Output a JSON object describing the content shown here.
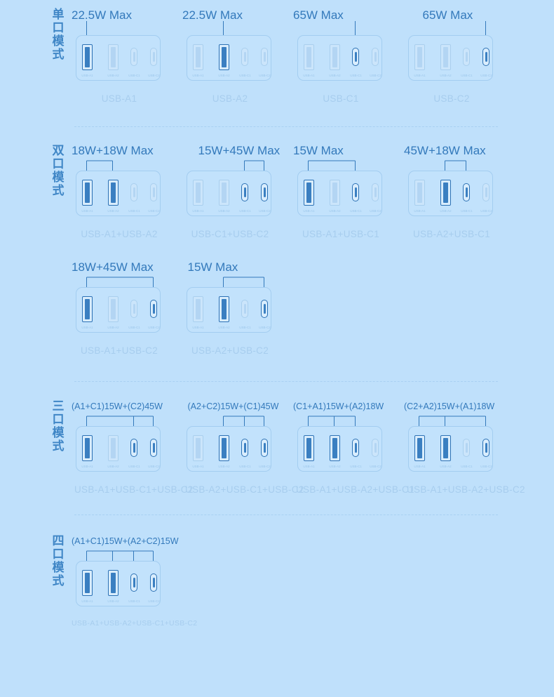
{
  "colors": {
    "background": "#bfe0fb",
    "accent": "#3379bb",
    "active_port": "#2d72b5",
    "inactive_port": "#a9cfee",
    "muted_text": "#a7cdee"
  },
  "port_labels": [
    "USB-A1",
    "USB-A2",
    "USB-C1",
    "USB-C2"
  ],
  "sections": [
    {
      "label": "单口模式",
      "cards": [
        {
          "power": "22.5W Max",
          "combo": "USB-A1",
          "active": [
            0
          ]
        },
        {
          "power": "22.5W Max",
          "combo": "USB-A2",
          "active": [
            1
          ]
        },
        {
          "power": "65W Max",
          "combo": "USB-C1",
          "active": [
            2
          ]
        },
        {
          "power": "65W Max",
          "combo": "USB-C2",
          "active": [
            3
          ]
        }
      ]
    },
    {
      "label": "双口模式",
      "cards": [
        {
          "power": "18W+18W Max",
          "combo": "USB-A1+USB-A2",
          "active": [
            0,
            1
          ]
        },
        {
          "power": "15W+45W Max",
          "combo": "USB-C1+USB-C2",
          "active": [
            2,
            3
          ]
        },
        {
          "power": "15W Max",
          "combo": "USB-A1+USB-C1",
          "active": [
            0,
            2
          ]
        },
        {
          "power": "45W+18W Max",
          "combo": "USB-A2+USB-C1",
          "active": [
            1,
            2
          ]
        },
        {
          "power": "18W+45W Max",
          "combo": "USB-A1+USB-C2",
          "active": [
            0,
            3
          ]
        },
        {
          "power": "15W Max",
          "combo": "USB-A2+USB-C2",
          "active": [
            1,
            3
          ]
        }
      ]
    },
    {
      "label": "三口模式",
      "cards": [
        {
          "power": "(A1+C1)15W+(C2)45W",
          "combo": "USB-A1+USB-C1+USB-C2",
          "active": [
            0,
            2,
            3
          ]
        },
        {
          "power": "(A2+C2)15W+(C1)45W",
          "combo": "USB-A2+USB-C1+USB-C2",
          "active": [
            1,
            2,
            3
          ]
        },
        {
          "power": "(C1+A1)15W+(A2)18W",
          "combo": "USB-A1+USB-A2+USB-C1",
          "active": [
            0,
            1,
            2
          ]
        },
        {
          "power": "(C2+A2)15W+(A1)18W",
          "combo": "USB-A1+USB-A2+USB-C2",
          "active": [
            0,
            1,
            3
          ]
        }
      ]
    },
    {
      "label": "四口模式",
      "cards": [
        {
          "power": "(A1+C1)15W+(A2+C2)15W",
          "combo": "USB-A1+USB-A2+USB-C1+USB-C2",
          "active": [
            0,
            1,
            2,
            3
          ]
        }
      ]
    }
  ]
}
